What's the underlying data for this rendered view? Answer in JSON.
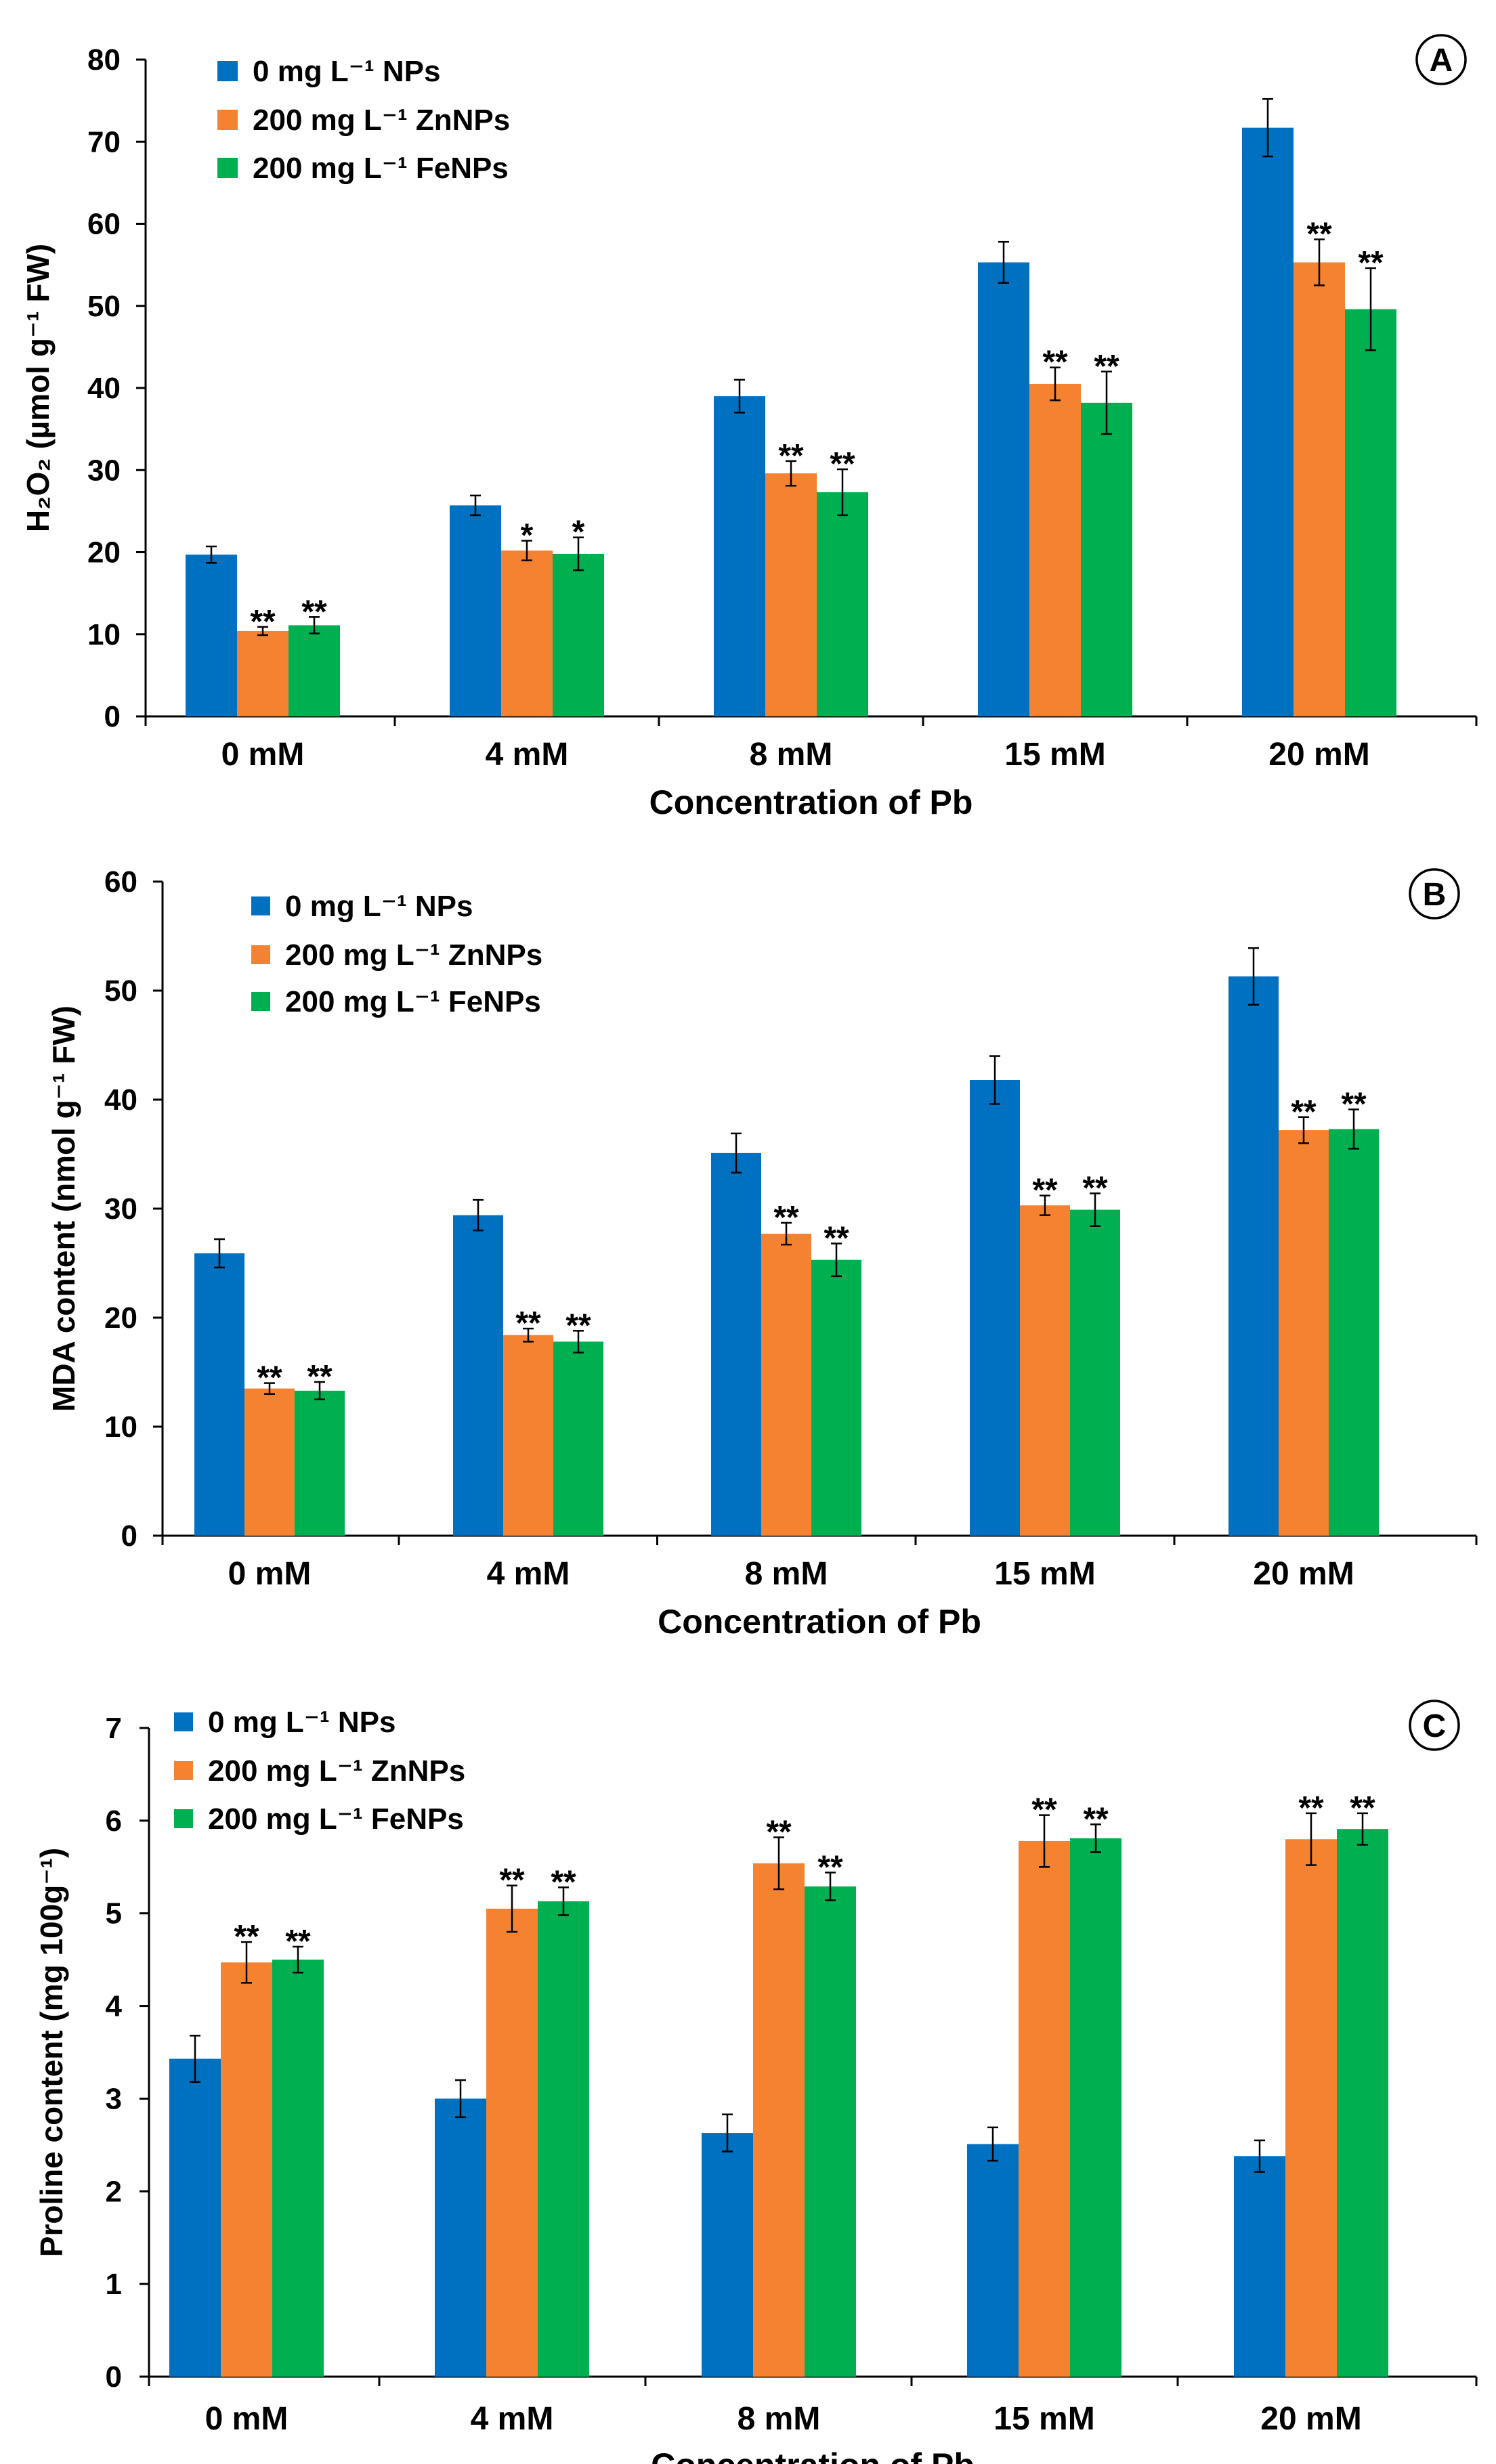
{
  "chart_data": [
    {
      "type": "bar",
      "panel_label": "A",
      "title": "",
      "xlabel": "Concentration of Pb",
      "ylabel": "H₂O₂ (µmol g⁻¹ FW)",
      "ylim": [
        0,
        80
      ],
      "ytick_step": 10,
      "categories": [
        "0 mM",
        "4 mM",
        "8 mM",
        "15 mM",
        "20 mM"
      ],
      "series": [
        {
          "name": "0 mg L⁻¹ NPs",
          "color": "#0070c0",
          "values": [
            19.7,
            25.7,
            39.0,
            55.3,
            71.7
          ],
          "errors": [
            1.0,
            1.2,
            2.0,
            2.5,
            3.5
          ],
          "sig": [
            "",
            "",
            "",
            "",
            ""
          ]
        },
        {
          "name": "200 mg L⁻¹ ZnNPs",
          "color": "#f58231",
          "values": [
            10.4,
            20.2,
            29.6,
            40.5,
            55.3
          ],
          "errors": [
            0.5,
            1.2,
            1.5,
            2.0,
            2.8
          ],
          "sig": [
            "**",
            "*",
            "**",
            "**",
            "**"
          ]
        },
        {
          "name": "200 mg L⁻¹ FeNPs",
          "color": "#00b050",
          "values": [
            11.1,
            19.8,
            27.3,
            38.2,
            49.6
          ],
          "errors": [
            1.0,
            2.0,
            2.8,
            3.8,
            5.0
          ],
          "sig": [
            "**",
            "*",
            "**",
            "**",
            "**"
          ]
        }
      ]
    },
    {
      "type": "bar",
      "panel_label": "B",
      "title": "",
      "xlabel": "Concentration of Pb",
      "ylabel": "MDA content (nmol g⁻¹ FW)",
      "ylim": [
        0,
        60
      ],
      "ytick_step": 10,
      "categories": [
        "0 mM",
        "4 mM",
        "8 mM",
        "15 mM",
        "20 mM"
      ],
      "series": [
        {
          "name": "0 mg L⁻¹ NPs",
          "color": "#0070c0",
          "values": [
            25.9,
            29.4,
            35.1,
            41.8,
            51.3
          ],
          "errors": [
            1.3,
            1.4,
            1.8,
            2.2,
            2.6
          ],
          "sig": [
            "",
            "",
            "",
            "",
            ""
          ]
        },
        {
          "name": "200 mg L⁻¹ ZnNPs",
          "color": "#f58231",
          "values": [
            13.5,
            18.4,
            27.7,
            30.3,
            37.2
          ],
          "errors": [
            0.5,
            0.6,
            1.0,
            0.9,
            1.2
          ],
          "sig": [
            "**",
            "**",
            "**",
            "**",
            "**"
          ]
        },
        {
          "name": "200 mg L⁻¹ FeNPs",
          "color": "#00b050",
          "values": [
            13.3,
            17.8,
            25.3,
            29.9,
            37.3
          ],
          "errors": [
            0.8,
            1.0,
            1.5,
            1.5,
            1.8
          ],
          "sig": [
            "**",
            "**",
            "**",
            "**",
            "**"
          ]
        }
      ]
    },
    {
      "type": "bar",
      "panel_label": "C",
      "title": "",
      "xlabel": "Concentration of Pb",
      "ylabel": "Proline content (mg 100g⁻¹)",
      "ylim": [
        0,
        7
      ],
      "ytick_step": 1,
      "categories": [
        "0 mM",
        "4 mM",
        "8 mM",
        "15 mM",
        "20 mM"
      ],
      "series": [
        {
          "name": "0 mg L⁻¹ NPs",
          "color": "#0070c0",
          "values": [
            3.43,
            3.0,
            2.63,
            2.51,
            2.38
          ],
          "errors": [
            0.25,
            0.2,
            0.2,
            0.18,
            0.17
          ],
          "sig": [
            "",
            "",
            "",
            "",
            ""
          ]
        },
        {
          "name": "200 mg L⁻¹ ZnNPs",
          "color": "#f58231",
          "values": [
            4.47,
            5.05,
            5.54,
            5.78,
            5.8
          ],
          "errors": [
            0.22,
            0.25,
            0.28,
            0.28,
            0.28
          ],
          "sig": [
            "**",
            "**",
            "**",
            "**",
            "**"
          ]
        },
        {
          "name": "200 mg L⁻¹ FeNPs",
          "color": "#00b050",
          "values": [
            4.5,
            5.13,
            5.29,
            5.81,
            5.91
          ],
          "errors": [
            0.14,
            0.15,
            0.15,
            0.15,
            0.17
          ],
          "sig": [
            "**",
            "**",
            "**",
            "**",
            "**"
          ]
        }
      ]
    }
  ]
}
